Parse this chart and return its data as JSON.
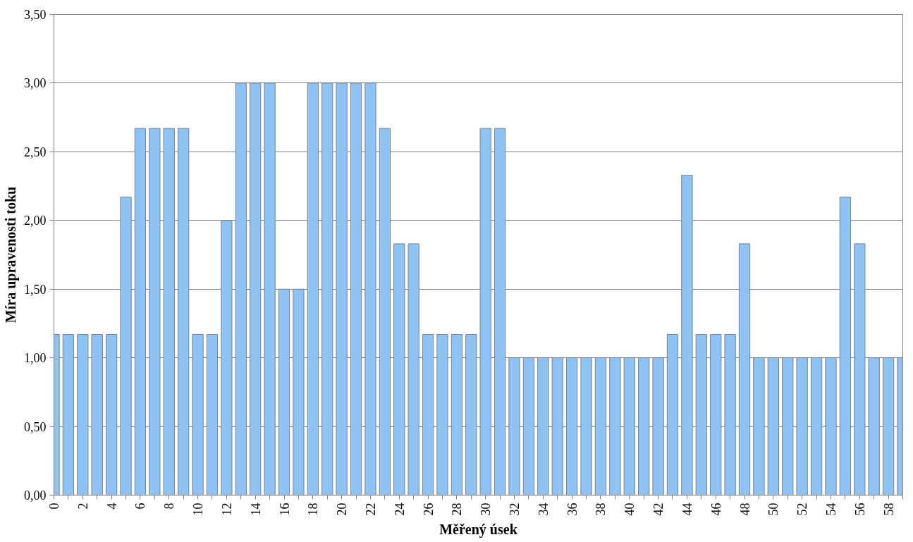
{
  "chart_data": {
    "type": "bar",
    "xlabel": "Měřený úsek",
    "ylabel": "Míra upravenosti toku",
    "categories": [
      "0",
      null,
      "2",
      null,
      "4",
      null,
      "6",
      null,
      "8",
      null,
      "10",
      null,
      "12",
      null,
      "14",
      null,
      "16",
      null,
      "18",
      null,
      "20",
      null,
      "22",
      null,
      "24",
      null,
      "26",
      null,
      "28",
      null,
      "30",
      null,
      "32",
      null,
      "34",
      null,
      "36",
      null,
      "38",
      null,
      "40",
      null,
      "42",
      null,
      "44",
      null,
      "46",
      null,
      "48",
      null,
      "50",
      null,
      "52",
      null,
      "54",
      null,
      "56",
      null,
      "58",
      null
    ],
    "values": [
      1.17,
      1.17,
      1.17,
      1.17,
      1.17,
      2.17,
      2.67,
      2.67,
      2.67,
      2.67,
      1.17,
      1.17,
      2.0,
      3.0,
      3.0,
      3.0,
      1.5,
      1.5,
      3.0,
      3.0,
      3.0,
      3.0,
      3.0,
      2.67,
      1.83,
      1.83,
      1.17,
      1.17,
      1.17,
      1.17,
      2.67,
      2.67,
      1.0,
      1.0,
      1.0,
      1.0,
      1.0,
      1.0,
      1.0,
      1.0,
      1.0,
      1.0,
      1.0,
      1.17,
      2.33,
      1.17,
      1.17,
      1.17,
      1.83,
      1.0,
      1.0,
      1.0,
      1.0,
      1.0,
      1.0,
      2.17,
      1.83,
      1.0,
      1.0,
      1.0
    ],
    "color": "#8ec3f5",
    "ylim": [
      0,
      3.5
    ],
    "yticks": [
      {
        "value": 0,
        "label": "0,00"
      },
      {
        "value": 0.5,
        "label": "0,50"
      },
      {
        "value": 1.0,
        "label": "1,00"
      },
      {
        "value": 1.5,
        "label": "1,50"
      },
      {
        "value": 2.0,
        "label": "2,00"
      },
      {
        "value": 2.5,
        "label": "2,50"
      },
      {
        "value": 3.0,
        "label": "3,00"
      },
      {
        "value": 3.5,
        "label": "3,50"
      }
    ],
    "grid": "y"
  }
}
